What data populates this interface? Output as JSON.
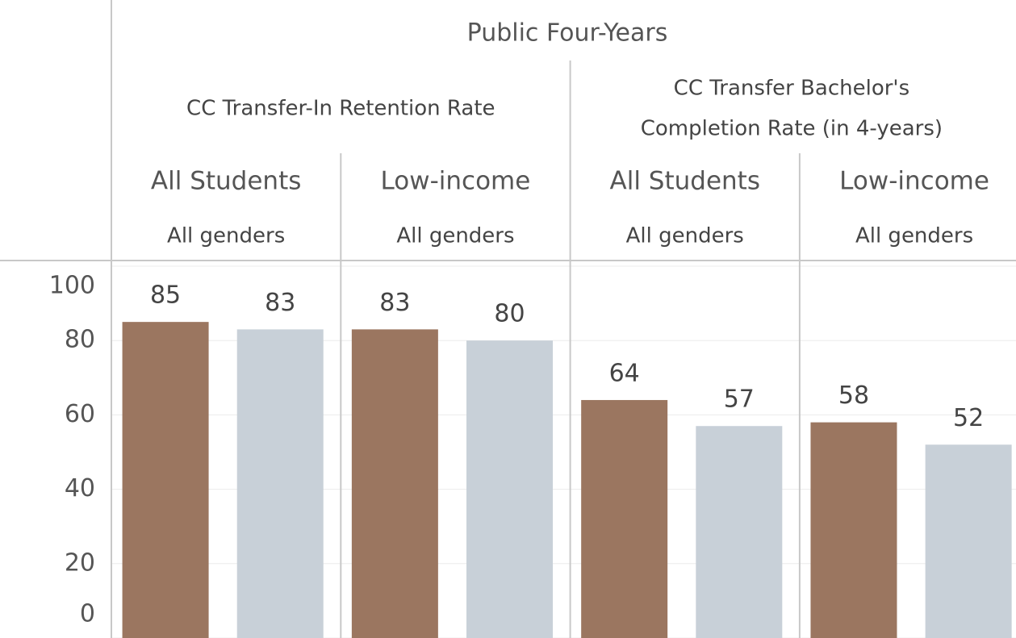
{
  "chart_data": {
    "type": "bar",
    "column_header": "Public Four-Years",
    "metrics": [
      [
        "CC Transfer-In Retention Rate"
      ],
      [
        "CC Transfer Bachelor's",
        "Completion Rate (in 4-years)"
      ]
    ],
    "categories": [
      "All Students",
      "Low-income",
      "All Students",
      "Low-income"
    ],
    "subcategories": [
      "All genders",
      "All genders",
      "All genders",
      "All genders"
    ],
    "series": [
      {
        "color": "#9b7660",
        "values": [
          85,
          83,
          64,
          58
        ]
      },
      {
        "color": "#c8d0d8",
        "values": [
          83,
          80,
          57,
          52
        ]
      }
    ],
    "ylim": [
      0,
      100
    ],
    "yticks": [
      0,
      20,
      40,
      60,
      80,
      100
    ],
    "grid": true
  }
}
